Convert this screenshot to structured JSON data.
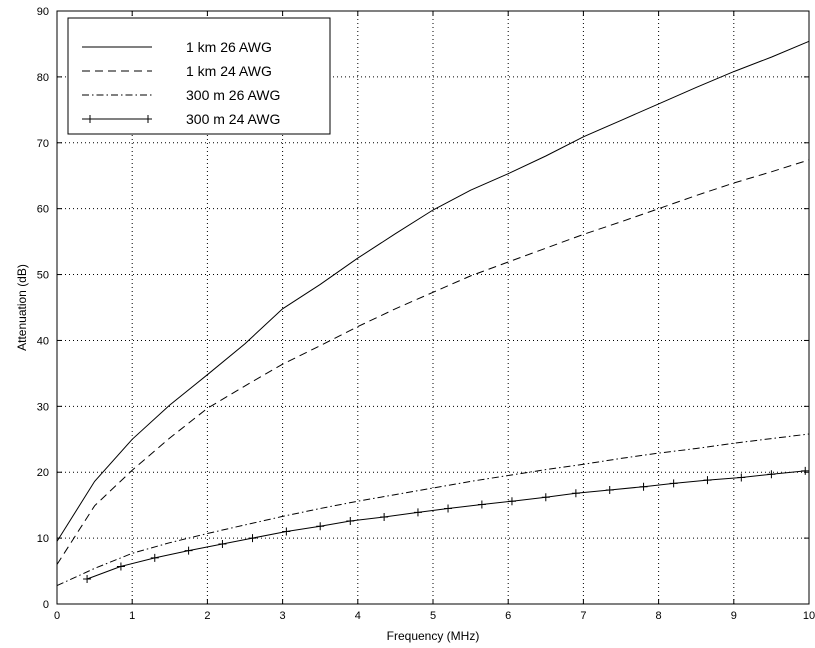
{
  "chart_data": {
    "type": "line",
    "title": "",
    "xlabel": "Frequency (MHz)",
    "ylabel": "Attenuation (dB)",
    "xlim": [
      0,
      10
    ],
    "ylim": [
      0,
      90
    ],
    "x_ticks": [
      0,
      1,
      2,
      3,
      4,
      5,
      6,
      7,
      8,
      9,
      10
    ],
    "y_ticks": [
      0,
      10,
      20,
      30,
      40,
      50,
      60,
      70,
      80,
      90
    ],
    "grid": true,
    "legend_position": "top-left",
    "series": [
      {
        "name": "1 km 26 AWG",
        "style": "solid",
        "x": [
          0,
          0.5,
          1,
          1.5,
          2,
          2.5,
          3,
          3.5,
          4,
          4.5,
          5,
          5.5,
          6,
          6.5,
          7,
          7.5,
          8,
          8.5,
          9,
          9.5,
          10
        ],
        "y": [
          9.5,
          18.6,
          25.0,
          30.2,
          34.8,
          39.5,
          44.8,
          48.5,
          52.5,
          56.2,
          59.8,
          62.8,
          65.3,
          68.0,
          70.9,
          73.4,
          75.9,
          78.4,
          80.8,
          83.0,
          85.4
        ]
      },
      {
        "name": "1 km 24 AWG",
        "style": "dashed",
        "x": [
          0,
          0.5,
          1,
          1.5,
          2,
          2.5,
          3,
          3.5,
          4,
          4.5,
          5,
          5.5,
          6,
          6.5,
          7,
          7.5,
          8,
          8.5,
          9,
          9.5,
          10
        ],
        "y": [
          6.0,
          14.9,
          20.3,
          25.2,
          29.7,
          33.1,
          36.4,
          39.2,
          42.1,
          44.8,
          47.3,
          49.8,
          51.9,
          54.0,
          56.1,
          58.0,
          60.0,
          62.0,
          63.9,
          65.6,
          67.4
        ]
      },
      {
        "name": "300 m 26 AWG",
        "style": "dash-dot",
        "x": [
          0,
          0.5,
          1,
          1.5,
          2,
          2.5,
          3,
          3.5,
          4,
          4.5,
          5,
          5.5,
          6,
          6.5,
          7,
          7.5,
          8,
          8.5,
          9,
          9.5,
          10
        ],
        "y": [
          2.8,
          5.4,
          7.7,
          9.3,
          10.7,
          12.0,
          13.3,
          14.5,
          15.6,
          16.6,
          17.6,
          18.6,
          19.5,
          20.4,
          21.2,
          22.1,
          22.9,
          23.6,
          24.4,
          25.1,
          25.8
        ]
      },
      {
        "name": "300 m 24 AWG",
        "style": "solid-plus",
        "x": [
          0.4,
          0.85,
          1.3,
          1.75,
          2.2,
          2.6,
          3.05,
          3.5,
          3.9,
          4.35,
          4.8,
          5.2,
          5.65,
          6.05,
          6.5,
          6.9,
          7.35,
          7.8,
          8.2,
          8.65,
          9.1,
          9.5,
          9.95
        ],
        "y": [
          3.8,
          5.7,
          7.0,
          8.1,
          9.1,
          10.0,
          11.0,
          11.8,
          12.6,
          13.2,
          13.9,
          14.5,
          15.1,
          15.6,
          16.2,
          16.8,
          17.3,
          17.8,
          18.3,
          18.8,
          19.2,
          19.7,
          20.2
        ]
      }
    ]
  }
}
